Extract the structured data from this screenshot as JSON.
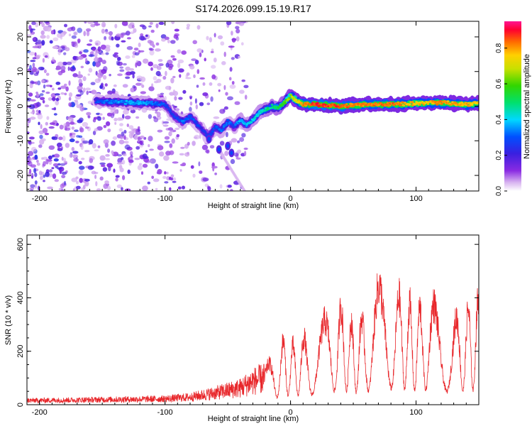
{
  "title": "S174.2026.099.15.19.R17",
  "chart_data": [
    {
      "type": "heatmap",
      "title": "S174.2026.099.15.19.R17",
      "xlabel": "Height of straight line (km)",
      "ylabel": "Frequency (Hz)",
      "xlim": [
        -210,
        150
      ],
      "ylim": [
        -24.5,
        24.5
      ],
      "xticks": [
        -200,
        -100,
        0,
        100
      ],
      "yticks": [
        -20,
        -10,
        0,
        10,
        20
      ],
      "colorbar": {
        "label": "Normalized spectral amplitude",
        "range": [
          0,
          0.95
        ],
        "ticks": [
          "0.0",
          "0.2",
          "0.4",
          "0.6",
          "0.8"
        ],
        "tick_values": [
          0,
          0.2,
          0.4,
          0.6,
          0.8
        ]
      },
      "ridge": {
        "x": [
          -155,
          -140,
          -125,
          -110,
          -100,
          -95,
          -90,
          -85,
          -80,
          -75,
          -70,
          -65,
          -60,
          -55,
          -50,
          -45,
          -40,
          -35,
          -30,
          -25,
          -20,
          -15,
          -10,
          -5,
          0,
          5,
          10,
          20,
          40,
          60,
          80,
          100,
          120,
          140,
          150
        ],
        "y": [
          1.5,
          1.2,
          1.0,
          0.8,
          0.5,
          -2.0,
          -3.5,
          -4.5,
          -3.0,
          -5.0,
          -7.0,
          -9.0,
          -6.0,
          -7.0,
          -4.5,
          -6.0,
          -4.0,
          -5.5,
          -4.0,
          -2.0,
          -1.0,
          0.0,
          -0.5,
          1.0,
          3.0,
          1.5,
          0.5,
          0.5,
          0.0,
          0.5,
          0.5,
          0.8,
          1.0,
          0.5,
          0.8
        ],
        "amplitude": [
          0.3,
          0.35,
          0.4,
          0.35,
          0.3,
          0.25,
          0.3,
          0.35,
          0.3,
          0.3,
          0.25,
          0.3,
          0.3,
          0.35,
          0.35,
          0.3,
          0.4,
          0.4,
          0.45,
          0.4,
          0.5,
          0.5,
          0.55,
          0.6,
          0.7,
          0.75,
          0.85,
          0.92,
          0.9,
          0.85,
          0.88,
          0.8,
          0.85,
          0.82,
          0.8
        ]
      }
    },
    {
      "type": "line",
      "xlabel": "Height of straight line (km)",
      "ylabel": "SNR (10 * v/v)",
      "xlim": [
        -210,
        150
      ],
      "ylim": [
        0,
        635
      ],
      "xticks": [
        -200,
        -100,
        0,
        100
      ],
      "yticks": [
        0,
        200,
        400,
        600
      ],
      "series": [
        {
          "name": "SNR",
          "color": "#e8262a",
          "envelope_x": [
            -210,
            -150,
            -100,
            -80,
            -60,
            -40,
            -30,
            -20,
            -15,
            -10,
            -5,
            0,
            10,
            20,
            30,
            40,
            50,
            60,
            70,
            80,
            90,
            100,
            110,
            120,
            130,
            140,
            150
          ],
          "envelope_y": [
            25,
            30,
            35,
            45,
            70,
            100,
            140,
            160,
            170,
            200,
            270,
            230,
            270,
            280,
            360,
            400,
            330,
            360,
            480,
            450,
            430,
            380,
            420,
            380,
            340,
            380,
            420
          ]
        }
      ]
    }
  ],
  "colors": {
    "line": "#e8262a",
    "axis": "#000000",
    "background": "#ffffff"
  }
}
